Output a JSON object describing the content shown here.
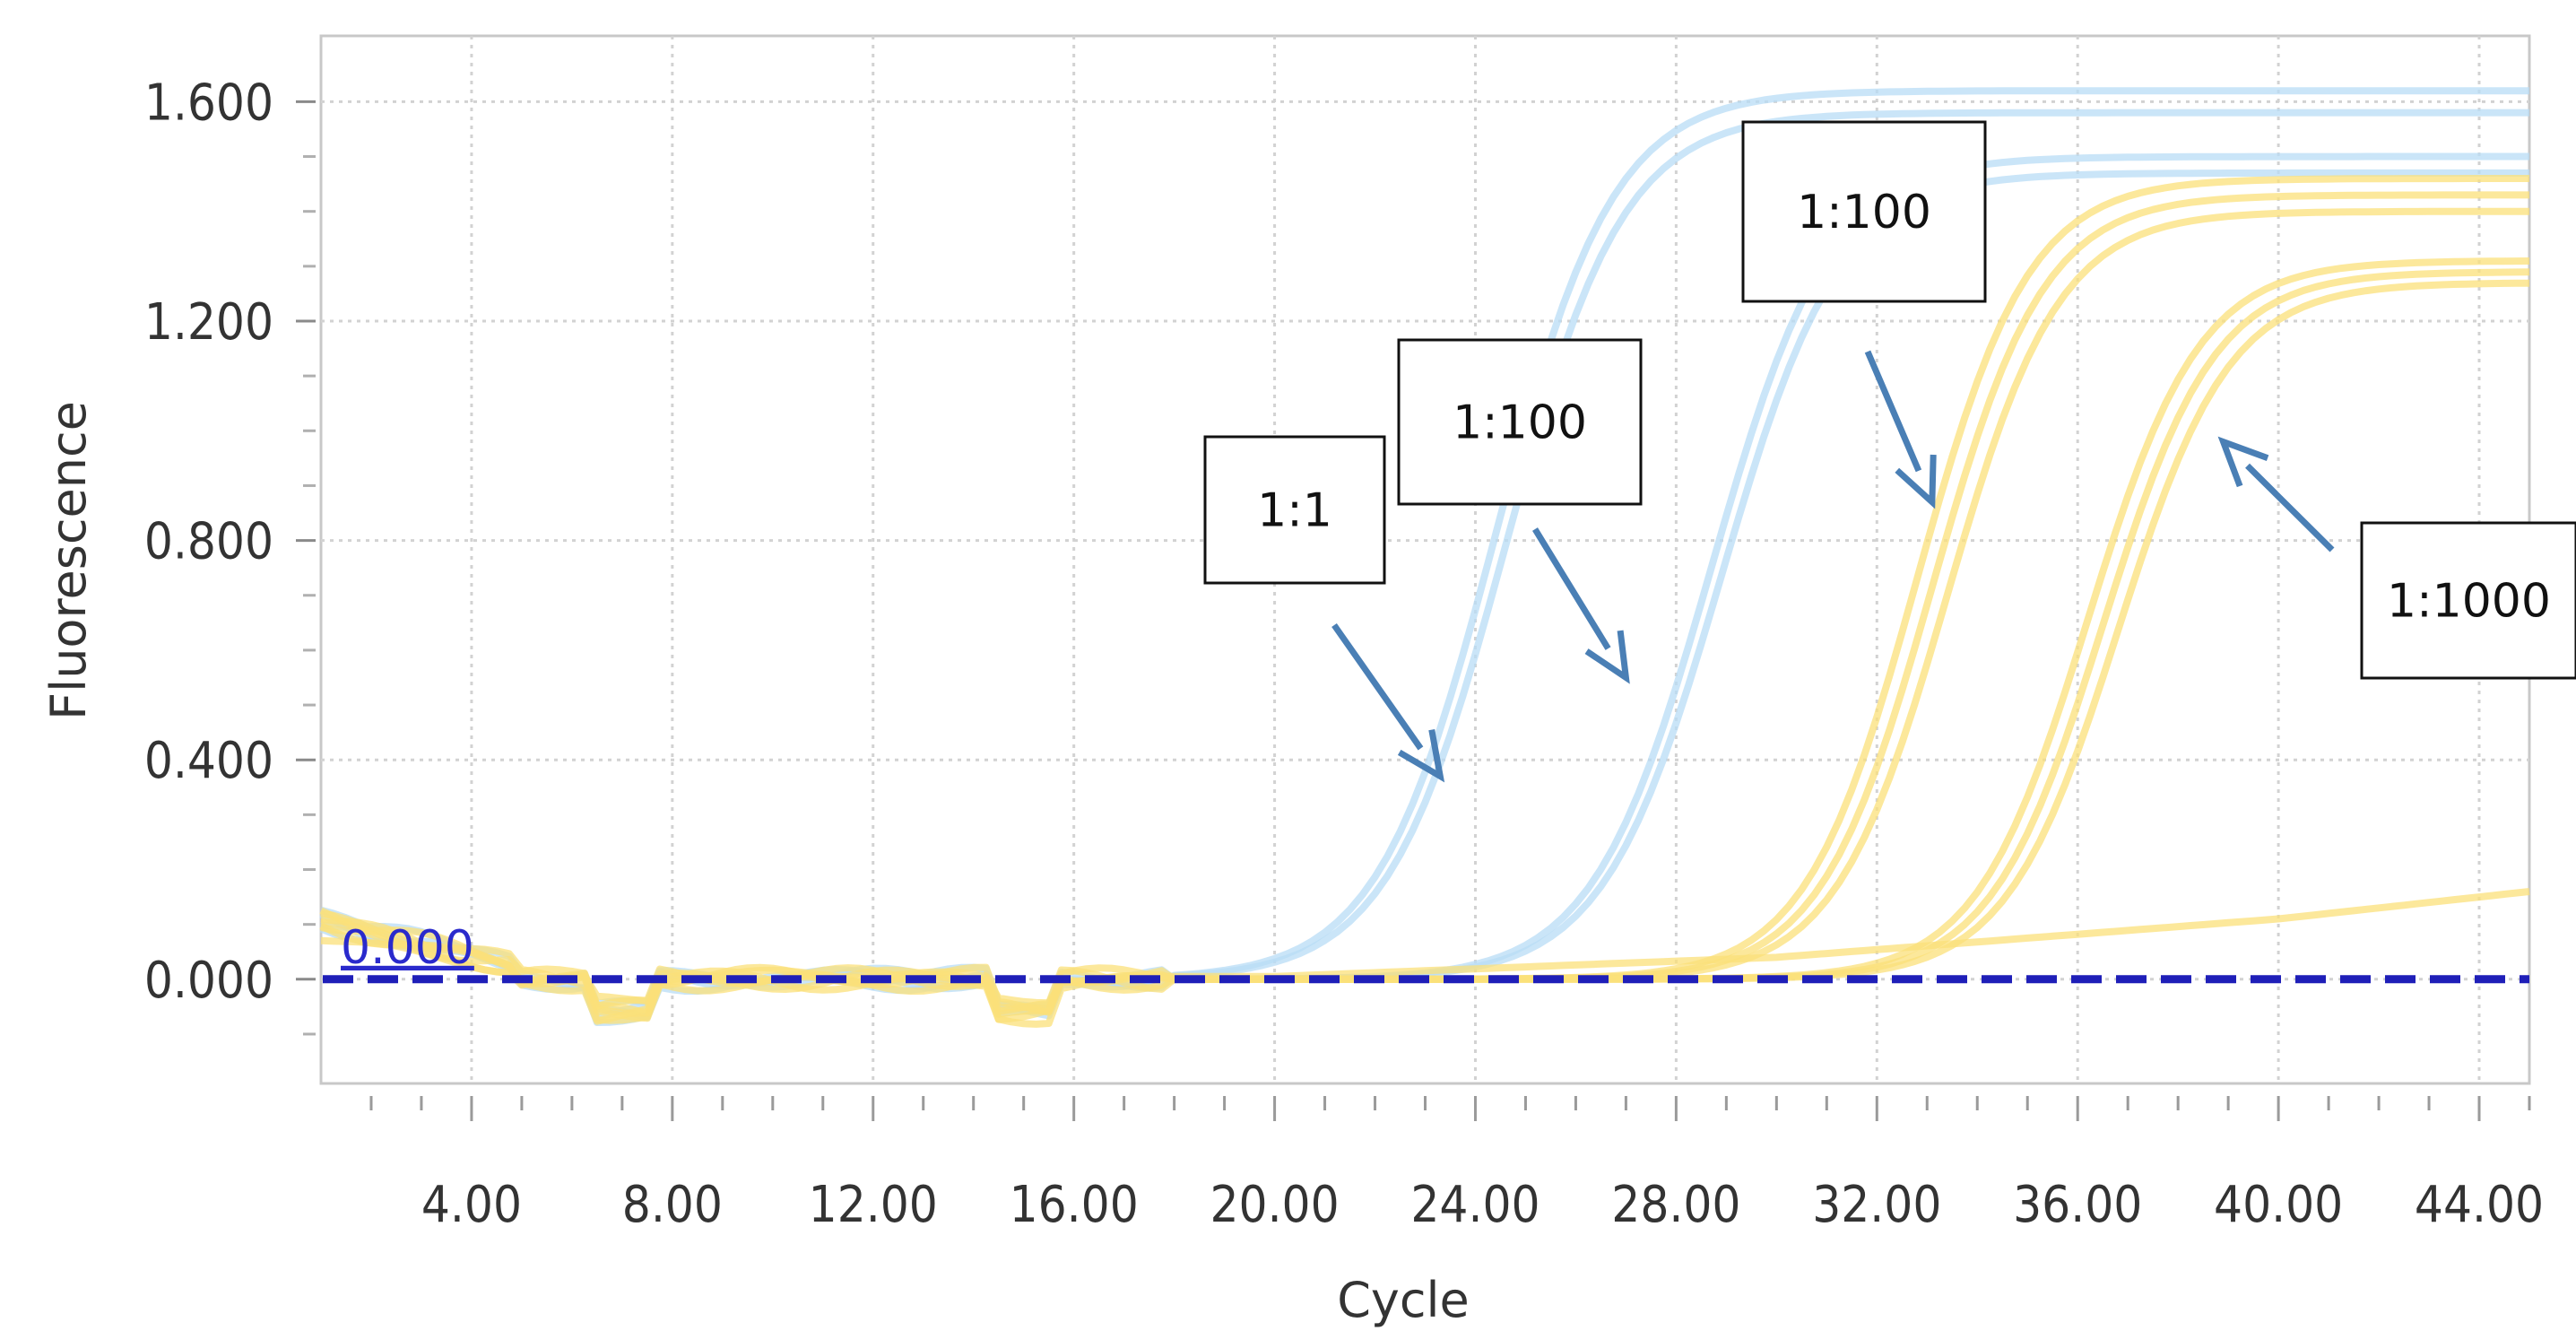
{
  "chart_data": {
    "type": "line",
    "xlabel": "Cycle",
    "ylabel": "Fluorescence",
    "xlim": [
      1,
      45
    ],
    "ylim": [
      -0.19,
      1.72
    ],
    "x_ticks": [
      "4.00",
      "8.00",
      "12.00",
      "16.00",
      "20.00",
      "24.00",
      "28.00",
      "32.00",
      "36.00",
      "40.00",
      "44.00"
    ],
    "x_tick_values": [
      4,
      8,
      12,
      16,
      20,
      24,
      28,
      32,
      36,
      40,
      44
    ],
    "y_ticks": [
      "0.000",
      "0.400",
      "0.800",
      "1.200",
      "1.600"
    ],
    "y_tick_values": [
      0,
      0.4,
      0.8,
      1.2,
      1.6
    ],
    "grid": true,
    "threshold": {
      "value": 0.0,
      "label": "0.000",
      "color": "#1f1fb8"
    },
    "series_colors": {
      "blue": "#b8dcf5",
      "yellow": "#fbe07a"
    },
    "series": [
      {
        "color": "blue",
        "ct": 23.8,
        "plateau": 1.62,
        "slope": 0.85
      },
      {
        "color": "blue",
        "ct": 24.0,
        "plateau": 1.58,
        "slope": 0.85
      },
      {
        "color": "blue",
        "ct": 28.1,
        "plateau": 1.5,
        "slope": 0.85
      },
      {
        "color": "blue",
        "ct": 28.3,
        "plateau": 1.47,
        "slope": 0.85
      },
      {
        "color": "yellow",
        "ct": 32.2,
        "plateau": 1.46,
        "slope": 0.9
      },
      {
        "color": "yellow",
        "ct": 32.5,
        "plateau": 1.43,
        "slope": 0.9
      },
      {
        "color": "yellow",
        "ct": 32.8,
        "plateau": 1.4,
        "slope": 0.9
      },
      {
        "color": "yellow",
        "ct": 35.6,
        "plateau": 1.31,
        "slope": 0.9
      },
      {
        "color": "yellow",
        "ct": 35.9,
        "plateau": 1.29,
        "slope": 0.9
      },
      {
        "color": "yellow",
        "ct": 36.2,
        "plateau": 1.27,
        "slope": 0.9
      },
      {
        "color": "yellow",
        "kind": "linear-drift",
        "points": [
          [
            20,
            0.005
          ],
          [
            30,
            0.04
          ],
          [
            40,
            0.11
          ],
          [
            45,
            0.16
          ]
        ]
      }
    ],
    "annotations": [
      {
        "text": "1:1",
        "arrow_to": [
          23.3,
          0.37
        ]
      },
      {
        "text": "1:100",
        "arrow_to": [
          27.0,
          0.55
        ]
      },
      {
        "text": "1:100",
        "arrow_to": [
          33.1,
          0.87
        ]
      },
      {
        "text": "1:1000",
        "arrow_to": [
          38.9,
          0.98
        ]
      }
    ]
  }
}
